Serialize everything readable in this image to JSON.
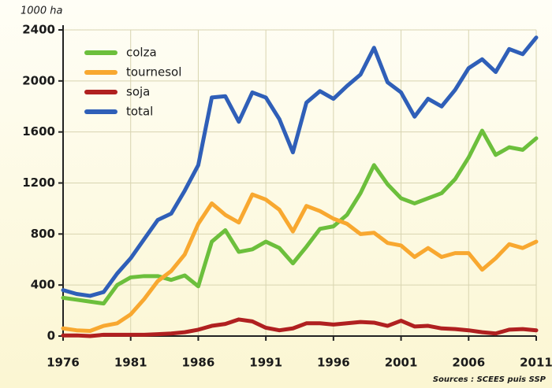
{
  "chart_data": {
    "type": "line",
    "y_unit_label": "1000 ha",
    "source": "Sources : SCEES puis SSP",
    "x": [
      1976,
      1977,
      1978,
      1979,
      1980,
      1981,
      1982,
      1983,
      1984,
      1985,
      1986,
      1987,
      1988,
      1989,
      1990,
      1991,
      1992,
      1993,
      1994,
      1995,
      1996,
      1997,
      1998,
      1999,
      2000,
      2001,
      2002,
      2003,
      2004,
      2005,
      2006,
      2007,
      2008,
      2009,
      2010,
      2011
    ],
    "xlim": [
      1976,
      2011
    ],
    "xticks": [
      1976,
      1981,
      1986,
      1991,
      1996,
      2001,
      2006,
      2011
    ],
    "ylim": [
      0,
      2400
    ],
    "yticks": [
      0,
      400,
      800,
      1200,
      1600,
      2000,
      2400
    ],
    "grid": true,
    "legend": "upper left",
    "series": [
      {
        "name": "colza",
        "color": "#6cbf3c",
        "values": [
          300,
          285,
          270,
          255,
          400,
          460,
          470,
          470,
          440,
          475,
          390,
          740,
          830,
          660,
          680,
          740,
          690,
          570,
          700,
          840,
          860,
          950,
          1120,
          1340,
          1190,
          1080,
          1040,
          1080,
          1120,
          1230,
          1400,
          1610,
          1420,
          1480,
          1460,
          1550
        ]
      },
      {
        "name": "tournesol",
        "color": "#f8a830",
        "values": [
          60,
          45,
          40,
          80,
          100,
          170,
          290,
          430,
          510,
          640,
          880,
          1040,
          950,
          890,
          1110,
          1070,
          990,
          820,
          1020,
          980,
          920,
          880,
          800,
          810,
          730,
          710,
          620,
          690,
          620,
          650,
          650,
          520,
          610,
          720,
          690,
          740
        ]
      },
      {
        "name": "soja",
        "color": "#b02020",
        "values": [
          5,
          5,
          0,
          10,
          10,
          10,
          10,
          15,
          20,
          30,
          50,
          80,
          95,
          130,
          115,
          65,
          45,
          60,
          100,
          100,
          90,
          100,
          110,
          105,
          80,
          120,
          75,
          80,
          60,
          55,
          45,
          30,
          20,
          50,
          55,
          45
        ]
      },
      {
        "name": "total",
        "color": "#2f5fb8",
        "values": [
          360,
          330,
          315,
          345,
          490,
          610,
          760,
          910,
          960,
          1140,
          1340,
          1870,
          1880,
          1680,
          1910,
          1870,
          1700,
          1440,
          1830,
          1920,
          1860,
          1960,
          2050,
          2260,
          1990,
          1910,
          1720,
          1860,
          1800,
          1930,
          2100,
          2170,
          2070,
          2250,
          2210,
          2340
        ]
      }
    ]
  }
}
